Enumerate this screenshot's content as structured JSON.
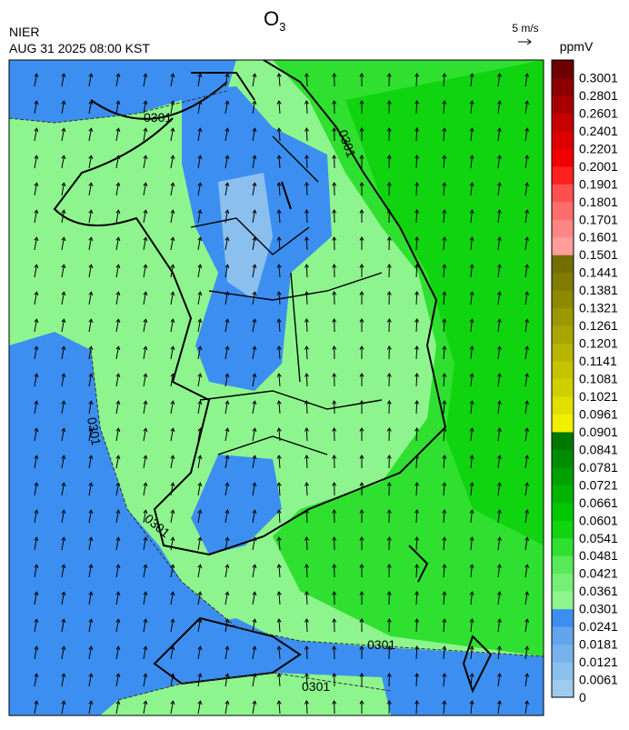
{
  "header": {
    "source": "NIER",
    "timestamp": "AUG 31 2025 08:00 KST",
    "title": {
      "main": "O",
      "subscript": "3"
    },
    "wind_reference": "5 m/s"
  },
  "legend": {
    "unit": "ppmV",
    "levels": [
      {
        "label": "0",
        "color": "#9ecbee"
      },
      {
        "label": "0.0061",
        "color": "#8bbfee"
      },
      {
        "label": "0.0121",
        "color": "#77b2ed"
      },
      {
        "label": "0.0181",
        "color": "#62a5ec"
      },
      {
        "label": "0.0241",
        "color": "#3c8ff0"
      },
      {
        "label": "0.0301",
        "color": "#8ef58e"
      },
      {
        "label": "0.0361",
        "color": "#76ef76"
      },
      {
        "label": "0.0421",
        "color": "#58ea58"
      },
      {
        "label": "0.0481",
        "color": "#30e030"
      },
      {
        "label": "0.0541",
        "color": "#10d410"
      },
      {
        "label": "0.0601",
        "color": "#00c800"
      },
      {
        "label": "0.0661",
        "color": "#00b400"
      },
      {
        "label": "0.0721",
        "color": "#00a000"
      },
      {
        "label": "0.0781",
        "color": "#008c00"
      },
      {
        "label": "0.0841",
        "color": "#007800"
      },
      {
        "label": "0.0901",
        "color": "#f0f000"
      },
      {
        "label": "0.0961",
        "color": "#e0e000"
      },
      {
        "label": "0.1021",
        "color": "#d0d000"
      },
      {
        "label": "0.1081",
        "color": "#c4c400"
      },
      {
        "label": "0.1141",
        "color": "#b8b400"
      },
      {
        "label": "0.1201",
        "color": "#aaa600"
      },
      {
        "label": "0.1261",
        "color": "#9c9800"
      },
      {
        "label": "0.1321",
        "color": "#8e8a00"
      },
      {
        "label": "0.1381",
        "color": "#807c00"
      },
      {
        "label": "0.1441",
        "color": "#726e00"
      },
      {
        "label": "0.1501",
        "color": "#ff9c9c"
      },
      {
        "label": "0.1601",
        "color": "#ff8484"
      },
      {
        "label": "0.1701",
        "color": "#ff6c6c"
      },
      {
        "label": "0.1801",
        "color": "#ff5050"
      },
      {
        "label": "0.1901",
        "color": "#ff2020"
      },
      {
        "label": "0.2001",
        "color": "#f00000"
      },
      {
        "label": "0.2201",
        "color": "#dc0000"
      },
      {
        "label": "0.2401",
        "color": "#c40000"
      },
      {
        "label": "0.2601",
        "color": "#a80000"
      },
      {
        "label": "0.2801",
        "color": "#8c0000"
      },
      {
        "label": "0.3001",
        "color": "#6c0000"
      }
    ]
  },
  "contour_labels": [
    "0301",
    "0301",
    "0301",
    "0301",
    "0301",
    "0301"
  ]
}
